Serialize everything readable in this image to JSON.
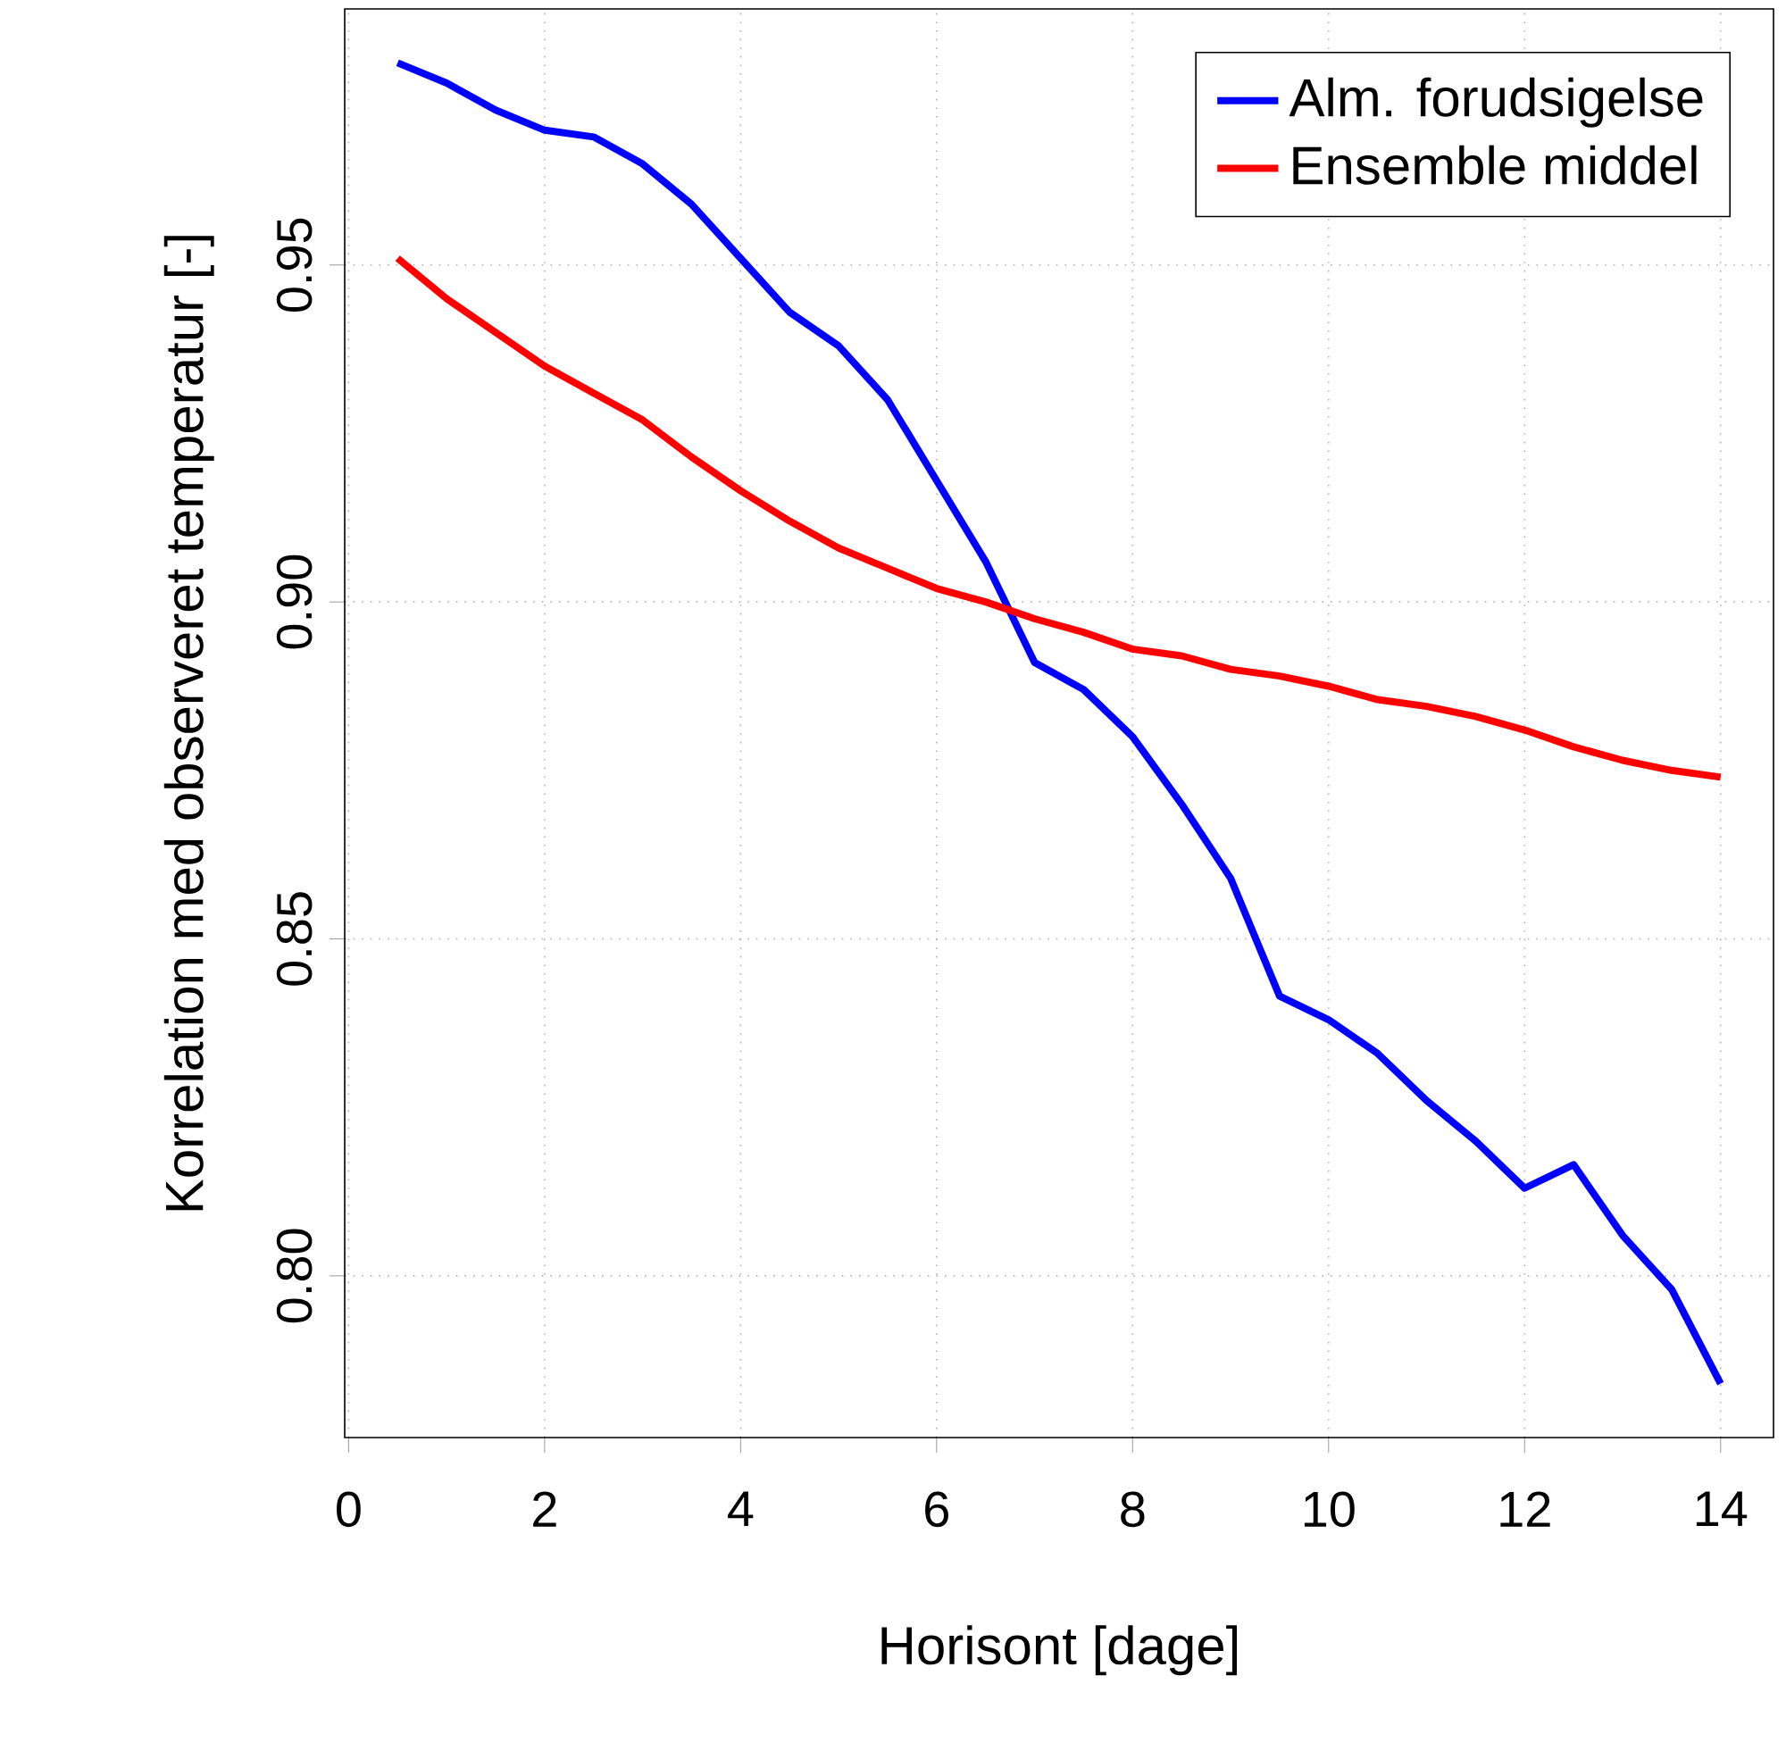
{
  "chart_data": {
    "type": "line",
    "xlabel": "Horisont [dage]",
    "ylabel": "Korrelation med observeret temperatur [-]",
    "x": [
      0.5,
      1,
      1.5,
      2,
      2.5,
      3,
      3.5,
      4,
      4.5,
      5,
      5.5,
      6,
      6.5,
      7,
      7.5,
      8,
      8.5,
      9,
      9.5,
      10,
      10.5,
      11,
      11.5,
      12,
      12.5,
      13,
      13.5,
      14
    ],
    "series": [
      {
        "name": "Alm. forudsigelse",
        "color": "#0000ff",
        "values": [
          0.98,
          0.977,
          0.973,
          0.97,
          0.969,
          0.965,
          0.959,
          0.951,
          0.943,
          0.938,
          0.93,
          0.918,
          0.906,
          0.891,
          0.887,
          0.88,
          0.87,
          0.859,
          0.8415,
          0.838,
          0.833,
          0.826,
          0.82,
          0.813,
          0.8165,
          0.806,
          0.798,
          0.784
        ]
      },
      {
        "name": "Ensemble middel",
        "color": "#ff0000",
        "values": [
          0.951,
          0.945,
          0.94,
          0.935,
          0.931,
          0.927,
          0.9215,
          0.9165,
          0.912,
          0.908,
          0.905,
          0.902,
          0.9,
          0.8975,
          0.8955,
          0.893,
          0.892,
          0.89,
          0.889,
          0.8875,
          0.8855,
          0.8845,
          0.883,
          0.881,
          0.8785,
          0.8765,
          0.875,
          0.874
        ]
      }
    ],
    "xlim": [
      -0.04,
      14.54
    ],
    "ylim": [
      0.776,
      0.988
    ],
    "xticks": [
      0,
      2,
      4,
      6,
      8,
      10,
      12,
      14
    ],
    "yticks": [
      {
        "value": 0.8,
        "label": "0.80"
      },
      0.85,
      {
        "value": 0.9,
        "label": "0.90"
      },
      0.95
    ],
    "grid": true,
    "legend": "top right"
  }
}
